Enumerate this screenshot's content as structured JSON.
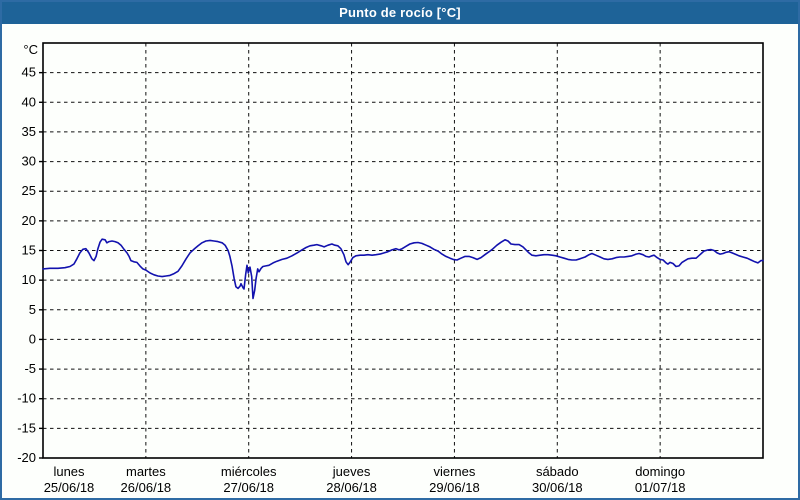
{
  "window": {
    "title_bar": {
      "text": "Punto de rocío [°C]",
      "bg": "#1e6398",
      "fg": "#ffffff"
    }
  },
  "page": {
    "bg": "#fdfffc",
    "border_color": "#2e6ba4"
  },
  "chart_data": {
    "type": "line",
    "title": "Punto de rocío [°C]",
    "unit_label": "°C",
    "ylabel": "°C",
    "xlabel": "",
    "ylim": [
      -20,
      50
    ],
    "x_range_hours": [
      0,
      168
    ],
    "grid": "dashed",
    "legend_position": "none",
    "grid_color": "#111111",
    "axis_color": "#000000",
    "text_color": "#000000",
    "y_ticks": [
      45,
      40,
      35,
      30,
      25,
      20,
      15,
      10,
      5,
      0,
      -5,
      -10,
      -15,
      -20
    ],
    "x_axis_days": [
      {
        "name": "lunes",
        "date": "25/06/18"
      },
      {
        "name": "martes",
        "date": "26/06/18"
      },
      {
        "name": "miércoles",
        "date": "27/06/18"
      },
      {
        "name": "jueves",
        "date": "28/06/18"
      },
      {
        "name": "viernes",
        "date": "29/06/18"
      },
      {
        "name": "sábado",
        "date": "30/06/18"
      },
      {
        "name": "domingo",
        "date": "01/07/18"
      }
    ],
    "series": [
      {
        "name": "Punto de rocío",
        "color": "#1212ae",
        "x_hours": [
          0,
          1.6,
          3.5,
          5.1,
          6.3,
          7.2,
          7.9,
          8.6,
          9.3,
          10,
          10.7,
          11.4,
          11.9,
          12.4,
          12.8,
          13.3,
          13.8,
          14.5,
          14.9,
          15.4,
          16.1,
          16.8,
          17.5,
          18.2,
          18.9,
          19.6,
          20.1,
          20.5,
          21.2,
          21.9,
          22.6,
          23.3,
          24,
          25,
          25.9,
          26.8,
          27.8,
          28.7,
          29.6,
          30.6,
          31.5,
          32.4,
          33.4,
          34.3,
          35.2,
          36.2,
          37.1,
          38,
          39,
          39.9,
          40.8,
          41.8,
          42.5,
          43.2,
          43.6,
          44.1,
          44.6,
          45,
          45.5,
          46,
          46.2,
          46.7,
          46.9,
          47.3,
          47.6,
          47.9,
          48.3,
          48.7,
          49,
          49.4,
          49.7,
          50.1,
          50.4,
          50.9,
          51.3,
          52,
          52.7,
          53.7,
          54.6,
          55.8,
          56.9,
          58.1,
          59.3,
          60.4,
          61.4,
          62.3,
          63.2,
          63.9,
          64.9,
          65.6,
          66.5,
          67.4,
          68.1,
          68.8,
          69.5,
          70.2,
          70.7,
          71.2,
          71.6,
          72.3,
          73,
          74,
          74.9,
          75.8,
          76.8,
          77.7,
          78.6,
          79.6,
          80.5,
          81.4,
          82.4,
          83.1,
          83.8,
          84.7,
          85.6,
          86.6,
          87.5,
          88.4,
          89.4,
          90.3,
          91.2,
          92.2,
          93.1,
          94,
          95,
          95.7,
          96.6,
          97.5,
          98.5,
          99.4,
          100.3,
          101.3,
          102.2,
          103.1,
          104.1,
          105,
          105.9,
          106.9,
          107.8,
          108.5,
          109.2,
          110.1,
          111.1,
          112,
          112.7,
          113.4,
          114.1,
          115,
          116,
          116.9,
          117.8,
          118.8,
          119.7,
          120.6,
          121.6,
          122.5,
          123.4,
          124.4,
          125.3,
          126.5,
          127.4,
          128.1,
          129,
          130,
          130.9,
          131.8,
          132.8,
          133.7,
          134.6,
          135.6,
          136.5,
          137.4,
          138.4,
          139.1,
          140,
          140.7,
          141.4,
          142.1,
          142.6,
          143.3,
          144,
          144.7,
          145.4,
          145.8,
          146.3,
          147,
          147.7,
          148.4,
          149.1,
          149.8,
          150.5,
          151.4,
          152.4,
          153.3,
          154.2,
          155.2,
          155.9,
          156.6,
          157.3,
          158,
          158.7,
          159.4,
          160.1,
          160.8,
          161.5,
          162.4,
          163.3,
          164.3,
          165.2,
          166.1,
          166.8,
          167.5,
          168
        ],
        "y_celsius": [
          11.9,
          12,
          12,
          12.1,
          12.3,
          12.7,
          13.6,
          14.6,
          15.2,
          15.3,
          14.6,
          13.6,
          13.3,
          14,
          15.3,
          16.4,
          16.9,
          16.8,
          16.3,
          16.5,
          16.6,
          16.5,
          16.3,
          15.9,
          15.2,
          14.6,
          14,
          13.3,
          13.1,
          13,
          12.4,
          11.9,
          11.7,
          11.2,
          10.9,
          10.7,
          10.6,
          10.7,
          10.8,
          11.1,
          11.5,
          12.4,
          13.6,
          14.6,
          15.2,
          15.8,
          16.3,
          16.6,
          16.7,
          16.6,
          16.5,
          16.3,
          15.9,
          15,
          14,
          12.4,
          10.3,
          8.9,
          8.6,
          9,
          9.4,
          8.7,
          8.5,
          11,
          12.5,
          11.2,
          12.2,
          10.6,
          6.9,
          8.3,
          10.2,
          11.9,
          11.4,
          12,
          12.3,
          12.4,
          12.5,
          12.9,
          13.2,
          13.5,
          13.7,
          14.1,
          14.6,
          15.1,
          15.5,
          15.8,
          15.9,
          16,
          15.8,
          15.6,
          15.9,
          16.1,
          15.9,
          15.8,
          15.3,
          14.3,
          13.1,
          12.6,
          13,
          13.8,
          14.1,
          14.2,
          14.2,
          14.3,
          14.2,
          14.3,
          14.4,
          14.6,
          14.8,
          15.1,
          15.3,
          15.1,
          15.3,
          15.7,
          16.1,
          16.3,
          16.35,
          16.2,
          15.9,
          15.6,
          15.2,
          14.9,
          14.4,
          14,
          13.7,
          13.5,
          13.4,
          13.7,
          14,
          14,
          13.8,
          13.5,
          13.8,
          14.3,
          14.8,
          15.3,
          15.9,
          16.4,
          16.8,
          16.6,
          16.1,
          16,
          16,
          15.6,
          15.1,
          14.6,
          14.2,
          14.1,
          14.2,
          14.3,
          14.3,
          14.2,
          14.1,
          13.9,
          13.7,
          13.5,
          13.4,
          13.4,
          13.6,
          13.9,
          14.3,
          14.5,
          14.2,
          13.9,
          13.6,
          13.5,
          13.6,
          13.8,
          13.9,
          13.9,
          14,
          14.1,
          14.4,
          14.5,
          14.3,
          14,
          13.9,
          14.1,
          14.2,
          13.8,
          13.5,
          13.4,
          12.9,
          12.7,
          13,
          12.8,
          12.3,
          12.4,
          13,
          13.3,
          13.6,
          13.7,
          13.7,
          14.3,
          14.9,
          15.1,
          15.15,
          15,
          14.6,
          14.4,
          14.5,
          14.7,
          14.8,
          14.6,
          14.4,
          14.1,
          13.9,
          13.7,
          13.4,
          13.1,
          12.9,
          13.3,
          13.3
        ]
      }
    ]
  }
}
